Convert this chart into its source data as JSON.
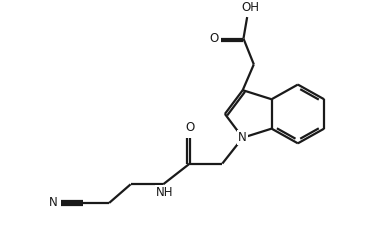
{
  "bg_color": "#ffffff",
  "line_color": "#1a1a1a",
  "line_width": 1.6,
  "font_size": 8.5,
  "fig_width": 3.7,
  "fig_height": 2.34,
  "dpi": 100,
  "xlim": [
    0,
    10
  ],
  "ylim": [
    0,
    6.3
  ]
}
